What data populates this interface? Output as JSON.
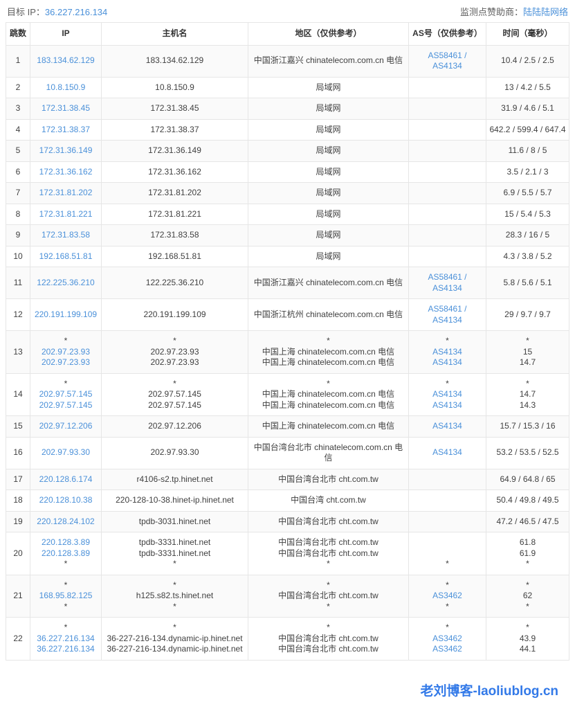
{
  "page": {
    "target_ip_label": "目标 IP：",
    "target_ip": "36.227.216.134",
    "sponsor_label": "监测点赞助商：",
    "sponsor_name": "陆陆陆网络",
    "watermark": "老刘博客-laoliublog.cn"
  },
  "colors": {
    "link_blue": "#4a90d9",
    "watermark_blue": "#3279e8",
    "stripe_gray": "#fafafa",
    "border_gray": "#e6e6e6"
  },
  "table": {
    "headers": [
      "跳数",
      "IP",
      "主机名",
      "地区（仅供参考）",
      "AS号（仅供参考）",
      "时间（毫秒）"
    ],
    "rows": [
      {
        "hop": "1",
        "ip": [
          "183.134.62.129"
        ],
        "host": [
          "183.134.62.129"
        ],
        "region": [
          "中国浙江嘉兴 chinatelecom.com.cn 电信"
        ],
        "asn": [
          "AS58461 /",
          "AS4134"
        ],
        "time": [
          "10.4 / 2.5 / 2.5"
        ]
      },
      {
        "hop": "2",
        "ip": [
          "10.8.150.9"
        ],
        "host": [
          "10.8.150.9"
        ],
        "region": [
          "局域网"
        ],
        "asn": [],
        "time": [
          "13 / 4.2 / 5.5"
        ]
      },
      {
        "hop": "3",
        "ip": [
          "172.31.38.45"
        ],
        "host": [
          "172.31.38.45"
        ],
        "region": [
          "局域网"
        ],
        "asn": [],
        "time": [
          "31.9 / 4.6 / 5.1"
        ]
      },
      {
        "hop": "4",
        "ip": [
          "172.31.38.37"
        ],
        "host": [
          "172.31.38.37"
        ],
        "region": [
          "局域网"
        ],
        "asn": [],
        "time": [
          "642.2 / 599.4 / 647.4"
        ]
      },
      {
        "hop": "5",
        "ip": [
          "172.31.36.149"
        ],
        "host": [
          "172.31.36.149"
        ],
        "region": [
          "局域网"
        ],
        "asn": [],
        "time": [
          "11.6 / 8 / 5"
        ]
      },
      {
        "hop": "6",
        "ip": [
          "172.31.36.162"
        ],
        "host": [
          "172.31.36.162"
        ],
        "region": [
          "局域网"
        ],
        "asn": [],
        "time": [
          "3.5 / 2.1 / 3"
        ]
      },
      {
        "hop": "7",
        "ip": [
          "172.31.81.202"
        ],
        "host": [
          "172.31.81.202"
        ],
        "region": [
          "局域网"
        ],
        "asn": [],
        "time": [
          "6.9 / 5.5 / 5.7"
        ]
      },
      {
        "hop": "8",
        "ip": [
          "172.31.81.221"
        ],
        "host": [
          "172.31.81.221"
        ],
        "region": [
          "局域网"
        ],
        "asn": [],
        "time": [
          "15 / 5.4 / 5.3"
        ]
      },
      {
        "hop": "9",
        "ip": [
          "172.31.83.58"
        ],
        "host": [
          "172.31.83.58"
        ],
        "region": [
          "局域网"
        ],
        "asn": [],
        "time": [
          "28.3 / 16 / 5"
        ]
      },
      {
        "hop": "10",
        "ip": [
          "192.168.51.81"
        ],
        "host": [
          "192.168.51.81"
        ],
        "region": [
          "局域网"
        ],
        "asn": [],
        "time": [
          "4.3 / 3.8 / 5.2"
        ]
      },
      {
        "hop": "11",
        "ip": [
          "122.225.36.210"
        ],
        "host": [
          "122.225.36.210"
        ],
        "region": [
          "中国浙江嘉兴 chinatelecom.com.cn 电信"
        ],
        "asn": [
          "AS58461 /",
          "AS4134"
        ],
        "time": [
          "5.8 / 5.6 / 5.1"
        ]
      },
      {
        "hop": "12",
        "ip": [
          "220.191.199.109"
        ],
        "host": [
          "220.191.199.109"
        ],
        "region": [
          "中国浙江杭州 chinatelecom.com.cn 电信"
        ],
        "asn": [
          "AS58461 /",
          "AS4134"
        ],
        "time": [
          "29 / 9.7 / 9.7"
        ]
      },
      {
        "hop": "13",
        "ip": [
          "*",
          "202.97.23.93",
          "202.97.23.93"
        ],
        "host": [
          "*",
          "202.97.23.93",
          "202.97.23.93"
        ],
        "region": [
          "*",
          "中国上海 chinatelecom.com.cn 电信",
          "中国上海 chinatelecom.com.cn 电信"
        ],
        "asn": [
          "*",
          "AS4134",
          "AS4134"
        ],
        "time": [
          "*",
          "15",
          "14.7"
        ]
      },
      {
        "hop": "14",
        "ip": [
          "*",
          "202.97.57.145",
          "202.97.57.145"
        ],
        "host": [
          "*",
          "202.97.57.145",
          "202.97.57.145"
        ],
        "region": [
          "*",
          "中国上海 chinatelecom.com.cn 电信",
          "中国上海 chinatelecom.com.cn 电信"
        ],
        "asn": [
          "*",
          "AS4134",
          "AS4134"
        ],
        "time": [
          "*",
          "14.7",
          "14.3"
        ]
      },
      {
        "hop": "15",
        "ip": [
          "202.97.12.206"
        ],
        "host": [
          "202.97.12.206"
        ],
        "region": [
          "中国上海 chinatelecom.com.cn 电信"
        ],
        "asn": [
          "AS4134"
        ],
        "time": [
          "15.7 / 15.3 / 16"
        ]
      },
      {
        "hop": "16",
        "ip": [
          "202.97.93.30"
        ],
        "host": [
          "202.97.93.30"
        ],
        "region": [
          "中国台湾台北市 chinatelecom.com.cn 电信"
        ],
        "asn": [
          "AS4134"
        ],
        "time": [
          "53.2 / 53.5 / 52.5"
        ]
      },
      {
        "hop": "17",
        "ip": [
          "220.128.6.174"
        ],
        "host": [
          "r4106-s2.tp.hinet.net"
        ],
        "region": [
          "中国台湾台北市 cht.com.tw"
        ],
        "asn": [],
        "time": [
          "64.9 / 64.8 / 65"
        ]
      },
      {
        "hop": "18",
        "ip": [
          "220.128.10.38"
        ],
        "host": [
          "220-128-10-38.hinet-ip.hinet.net"
        ],
        "region": [
          "中国台湾 cht.com.tw"
        ],
        "asn": [],
        "time": [
          "50.4 / 49.8 / 49.5"
        ]
      },
      {
        "hop": "19",
        "ip": [
          "220.128.24.102"
        ],
        "host": [
          "tpdb-3031.hinet.net"
        ],
        "region": [
          "中国台湾台北市 cht.com.tw"
        ],
        "asn": [],
        "time": [
          "47.2 / 46.5 / 47.5"
        ]
      },
      {
        "hop": "20",
        "ip": [
          "220.128.3.89",
          "220.128.3.89",
          "*"
        ],
        "host": [
          "tpdb-3331.hinet.net",
          "tpdb-3331.hinet.net",
          "*"
        ],
        "region": [
          "中国台湾台北市 cht.com.tw",
          "中国台湾台北市 cht.com.tw",
          "*"
        ],
        "asn": [
          "",
          "",
          "*"
        ],
        "time": [
          "61.8",
          "61.9",
          "*"
        ]
      },
      {
        "hop": "21",
        "ip": [
          "*",
          "168.95.82.125",
          "*"
        ],
        "host": [
          "*",
          "h125.s82.ts.hinet.net",
          "*"
        ],
        "region": [
          "*",
          "中国台湾台北市 cht.com.tw",
          "*"
        ],
        "asn": [
          "*",
          "AS3462",
          "*"
        ],
        "time": [
          "*",
          "62",
          "*"
        ]
      },
      {
        "hop": "22",
        "ip": [
          "*",
          "36.227.216.134",
          "36.227.216.134"
        ],
        "host": [
          "*",
          "36-227-216-134.dynamic-ip.hinet.net",
          "36-227-216-134.dynamic-ip.hinet.net"
        ],
        "region": [
          "*",
          "中国台湾台北市 cht.com.tw",
          "中国台湾台北市 cht.com.tw"
        ],
        "asn": [
          "*",
          "AS3462",
          "AS3462"
        ],
        "time": [
          "*",
          "43.9",
          "44.1"
        ]
      }
    ]
  }
}
